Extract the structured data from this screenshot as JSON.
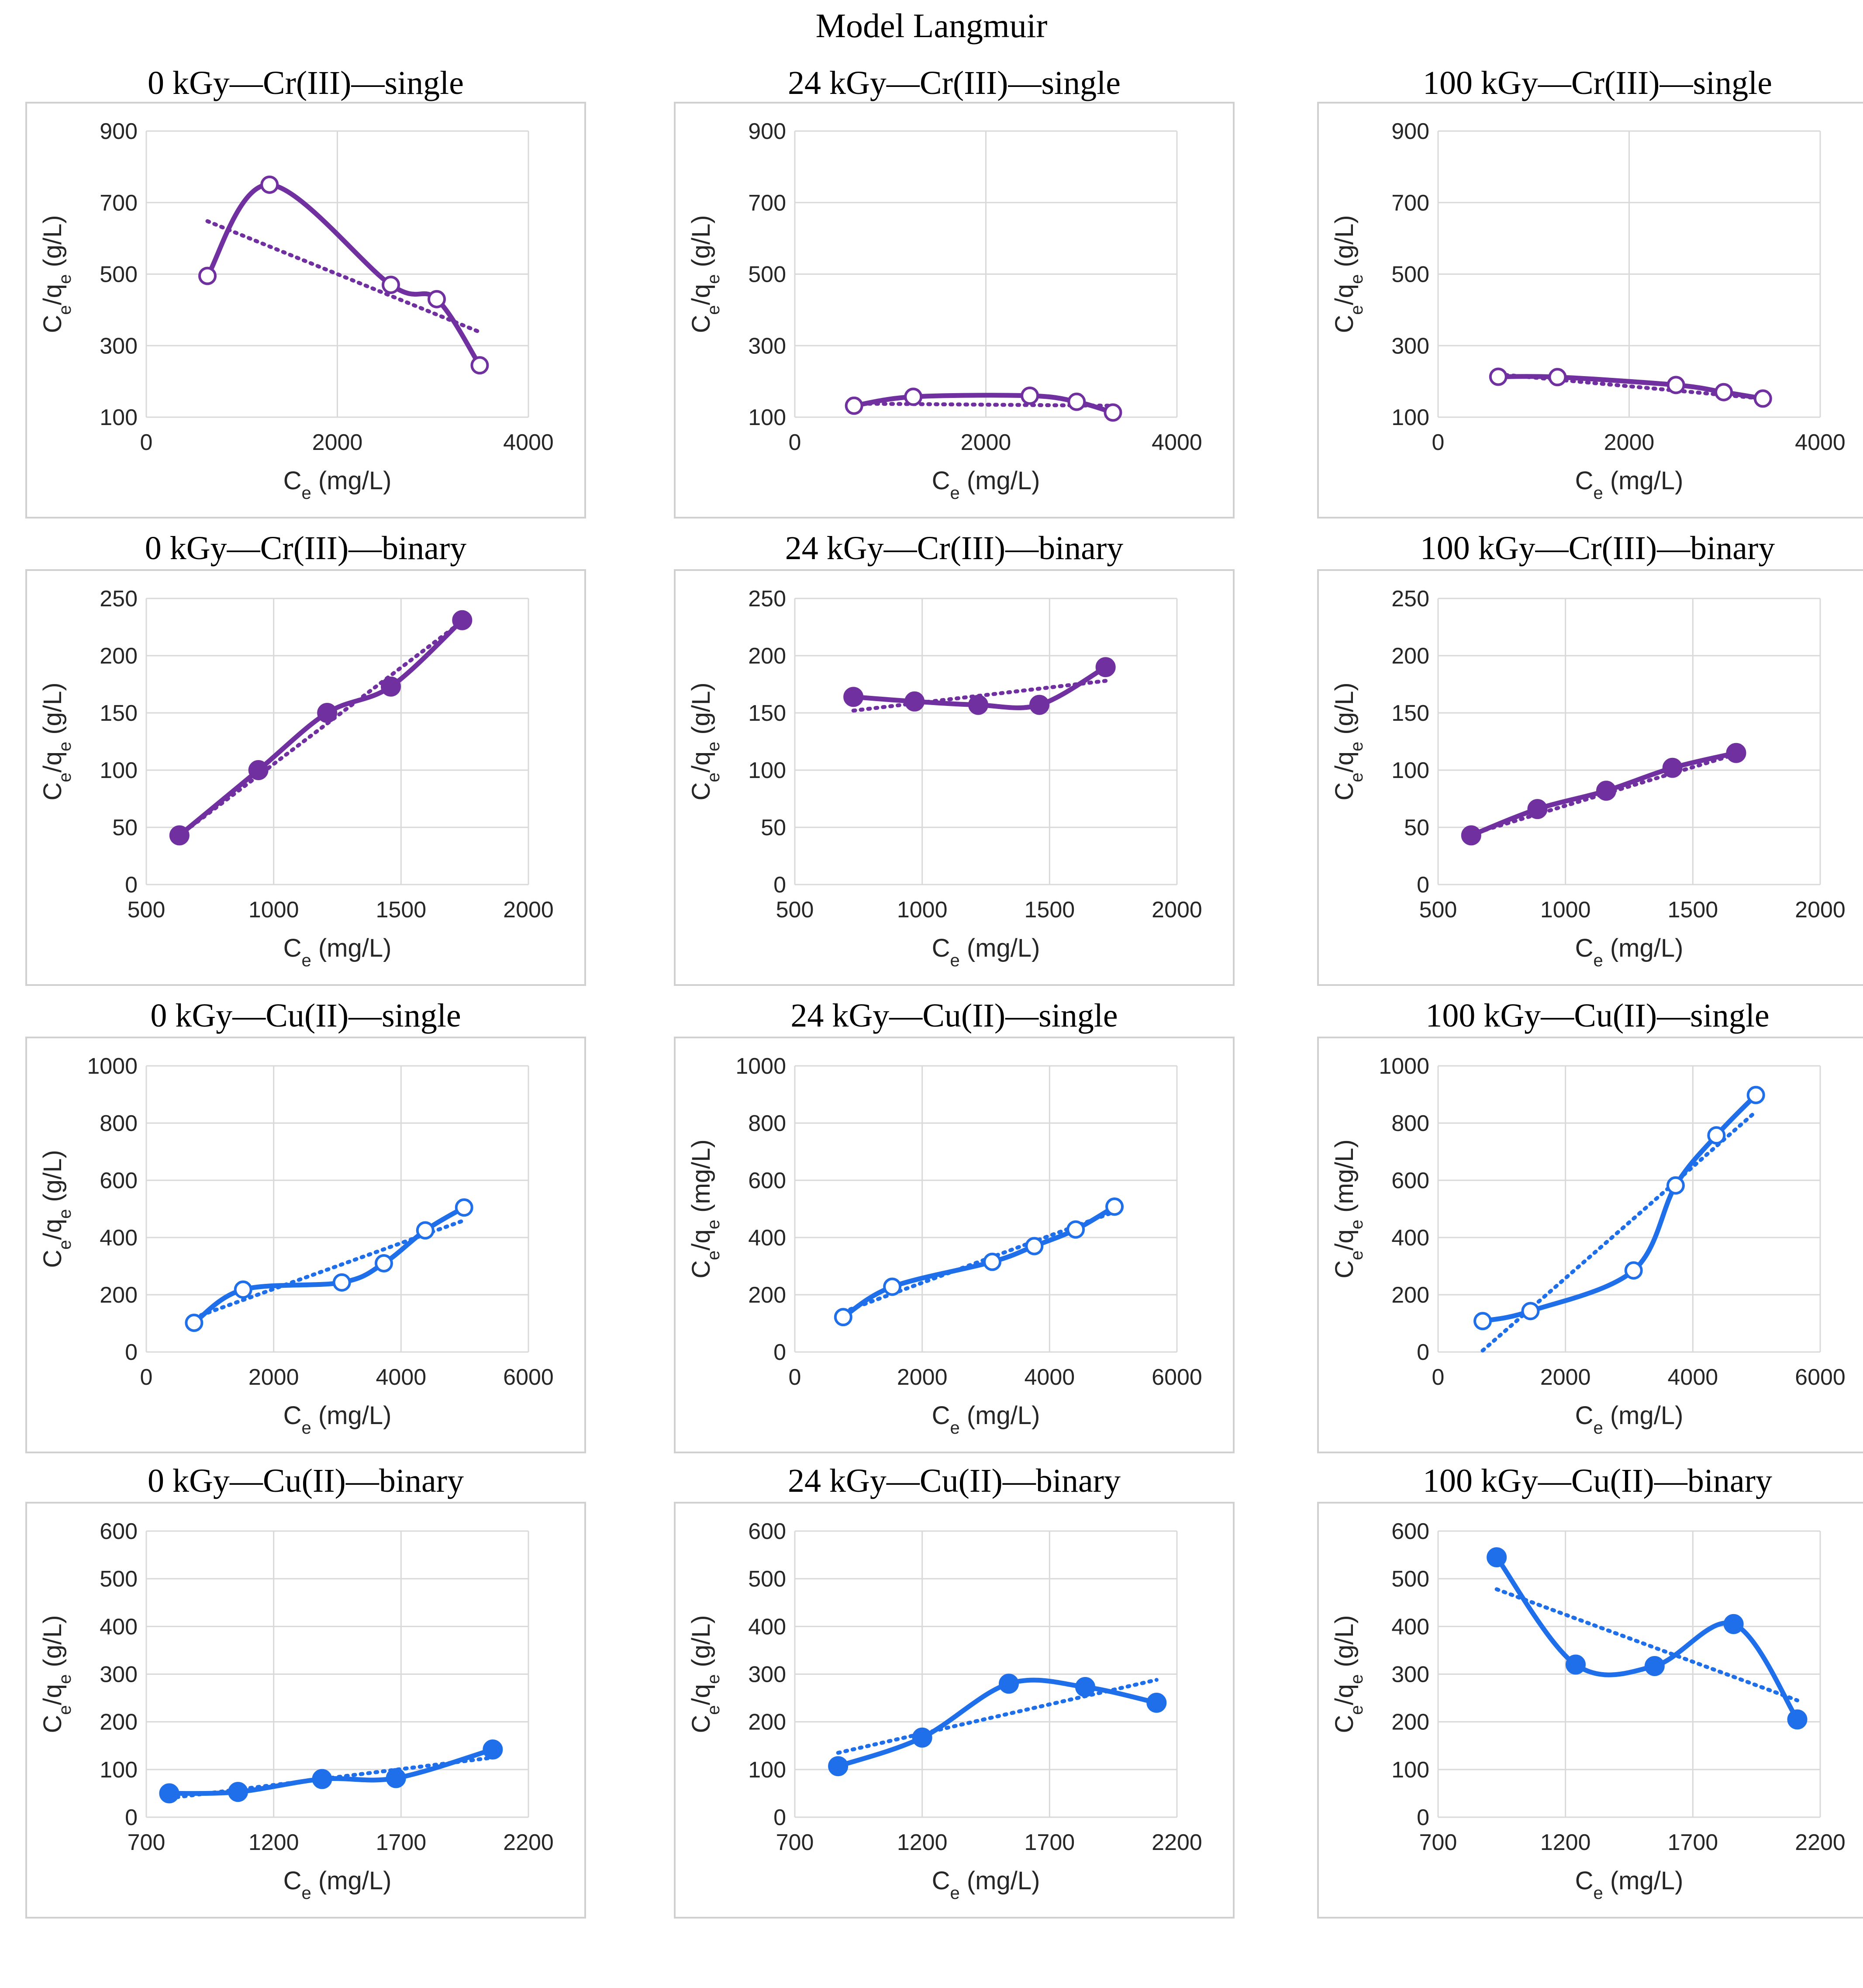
{
  "page_title": "Model Langmuir",
  "colors": {
    "purple": "#7030A0",
    "blue": "#1F6FEA",
    "grid": "#D9D9D9",
    "frame": "#D0D0D0"
  },
  "chart_data": [
    {
      "type": "scatter",
      "title": "0 kGy—Cr(III)—single",
      "xlabel": "Ce (mg/L)",
      "ylabel": "Ce/qe (g/L)",
      "xlim": [
        0,
        4000
      ],
      "ylim": [
        100,
        900
      ],
      "xticks": [
        0,
        2000,
        4000
      ],
      "yticks": [
        100,
        300,
        500,
        700,
        900
      ],
      "xtick_labels": [
        "0",
        "2000",
        "4000"
      ],
      "ytick_labels": [
        "100",
        "300",
        "500",
        "700",
        "900"
      ],
      "color": "purple",
      "marker": "open",
      "grid": true,
      "x": [
        640,
        1290,
        2560,
        3040,
        3490
      ],
      "y": [
        495,
        750,
        470,
        430,
        245
      ],
      "trend": [
        [
          640,
          648
        ],
        [
          3490,
          338
        ]
      ]
    },
    {
      "type": "scatter",
      "title": "24 kGy—Cr(III)—single",
      "xlabel": "Ce (mg/L)",
      "ylabel": "Ce/qe (g/L)",
      "xlim": [
        0,
        4000
      ],
      "ylim": [
        100,
        900
      ],
      "xticks": [
        0,
        2000,
        4000
      ],
      "yticks": [
        100,
        300,
        500,
        700,
        900
      ],
      "xtick_labels": [
        "0",
        "2000",
        "4000"
      ],
      "ytick_labels": [
        "100",
        "300",
        "500",
        "700",
        "900"
      ],
      "color": "purple",
      "marker": "open",
      "grid": true,
      "x": [
        620,
        1240,
        2460,
        2950,
        3330
      ],
      "y": [
        132,
        157,
        160,
        143,
        113
      ],
      "trend": [
        [
          620,
          138
        ],
        [
          3330,
          132
        ]
      ]
    },
    {
      "type": "scatter",
      "title": "100 kGy—Cr(III)—single",
      "xlabel": "Ce (mg/L)",
      "ylabel": "Ce/qe (g/L)",
      "xlim": [
        0,
        4000
      ],
      "ylim": [
        100,
        900
      ],
      "xticks": [
        0,
        2000,
        4000
      ],
      "yticks": [
        100,
        300,
        500,
        700,
        900
      ],
      "xtick_labels": [
        "0",
        "2000",
        "4000"
      ],
      "ytick_labels": [
        "100",
        "300",
        "500",
        "700",
        "900"
      ],
      "color": "purple",
      "marker": "open",
      "grid": true,
      "x": [
        630,
        1250,
        2490,
        2990,
        3400
      ],
      "y": [
        213,
        212,
        190,
        170,
        152
      ],
      "trend": [
        [
          630,
          220
        ],
        [
          3400,
          152
        ]
      ]
    },
    {
      "type": "scatter",
      "title": "0 kGy—Cr(III)—binary",
      "xlabel": "Ce (mg/L)",
      "ylabel": "Ce/qe (g/L)",
      "xlim": [
        500,
        2000
      ],
      "ylim": [
        0,
        250
      ],
      "xticks": [
        500,
        1000,
        1500,
        2000
      ],
      "yticks": [
        0,
        50,
        100,
        150,
        200,
        250
      ],
      "xtick_labels": [
        "500",
        "1000",
        "1500",
        "2000"
      ],
      "ytick_labels": [
        "0",
        "50",
        "100",
        "150",
        "200",
        "250"
      ],
      "color": "purple",
      "marker": "filled",
      "grid": true,
      "x": [
        630,
        940,
        1210,
        1460,
        1740
      ],
      "y": [
        43,
        100,
        150,
        173,
        231
      ],
      "trend": [
        [
          630,
          43
        ],
        [
          1740,
          230
        ]
      ]
    },
    {
      "type": "scatter",
      "title": "24 kGy—Cr(III)—binary",
      "xlabel": "Ce (mg/L)",
      "ylabel": "Ce/qe (g/L)",
      "xlim": [
        500,
        2000
      ],
      "ylim": [
        0,
        250
      ],
      "xticks": [
        500,
        1000,
        1500,
        2000
      ],
      "yticks": [
        0,
        50,
        100,
        150,
        200,
        250
      ],
      "xtick_labels": [
        "500",
        "1000",
        "1500",
        "2000"
      ],
      "ytick_labels": [
        "0",
        "50",
        "100",
        "150",
        "200",
        "250"
      ],
      "color": "purple",
      "marker": "filled",
      "grid": true,
      "x": [
        730,
        970,
        1220,
        1460,
        1720
      ],
      "y": [
        164,
        160,
        157,
        157,
        190
      ],
      "trend": [
        [
          730,
          152
        ],
        [
          1720,
          178
        ]
      ]
    },
    {
      "type": "scatter",
      "title": "100 kGy—Cr(III)—binary",
      "xlabel": "Ce (mg/L)",
      "ylabel": "Ce/qe (g/L)",
      "xlim": [
        500,
        2000
      ],
      "ylim": [
        0,
        250
      ],
      "xticks": [
        500,
        1000,
        1500,
        2000
      ],
      "yticks": [
        0,
        50,
        100,
        150,
        200,
        250
      ],
      "xtick_labels": [
        "500",
        "1000",
        "1500",
        "2000"
      ],
      "ytick_labels": [
        "0",
        "50",
        "100",
        "150",
        "200",
        "250"
      ],
      "color": "purple",
      "marker": "filled",
      "grid": true,
      "x": [
        630,
        890,
        1160,
        1420,
        1670
      ],
      "y": [
        43,
        66,
        82,
        102,
        115
      ],
      "trend": [
        [
          630,
          44
        ],
        [
          1670,
          114
        ]
      ]
    },
    {
      "type": "scatter",
      "title": "0 kGy—Cu(II)—single",
      "xlabel": "Ce (mg/L)",
      "ylabel": "Ce/qe (g/L)",
      "xlim": [
        0,
        6000
      ],
      "ylim": [
        0,
        1000
      ],
      "xticks": [
        0,
        2000,
        4000,
        6000
      ],
      "yticks": [
        0,
        200,
        400,
        600,
        800,
        1000
      ],
      "xtick_labels": [
        "0",
        "2000",
        "4000",
        "6000"
      ],
      "ytick_labels": [
        "0",
        "200",
        "400",
        "600",
        "800",
        "1000"
      ],
      "color": "blue",
      "marker": "open",
      "grid": true,
      "x": [
        750,
        1520,
        3070,
        3730,
        4380,
        4990
      ],
      "y": [
        102,
        218,
        243,
        310,
        425,
        505
      ],
      "trend": [
        [
          750,
          120
        ],
        [
          4990,
          460
        ]
      ]
    },
    {
      "type": "scatter",
      "title": "24 kGy—Cu(II)—single",
      "xlabel": "Ce (mg/L)",
      "ylabel": "Ce/qe (mg/L)",
      "xlim": [
        0,
        6000
      ],
      "ylim": [
        0,
        1000
      ],
      "xticks": [
        0,
        2000,
        4000,
        6000
      ],
      "yticks": [
        0,
        200,
        400,
        600,
        800,
        1000
      ],
      "xtick_labels": [
        "0",
        "2000",
        "4000",
        "6000"
      ],
      "ytick_labels": [
        "0",
        "200",
        "400",
        "600",
        "800",
        "1000"
      ],
      "color": "blue",
      "marker": "open",
      "grid": true,
      "x": [
        760,
        1530,
        3100,
        3760,
        4410,
        5020
      ],
      "y": [
        122,
        228,
        315,
        370,
        428,
        508
      ],
      "trend": [
        [
          760,
          140
        ],
        [
          5020,
          490
        ]
      ]
    },
    {
      "type": "scatter",
      "title": "100 kGy—Cu(II)—single",
      "xlabel": "Ce (mg/L)",
      "ylabel": "Ce/qe (mg/L)",
      "xlim": [
        0,
        6000
      ],
      "ylim": [
        0,
        1000
      ],
      "xticks": [
        0,
        2000,
        4000,
        6000
      ],
      "yticks": [
        0,
        200,
        400,
        600,
        800,
        1000
      ],
      "xtick_labels": [
        "0",
        "2000",
        "4000",
        "6000"
      ],
      "ytick_labels": [
        "0",
        "200",
        "400",
        "600",
        "800",
        "1000"
      ],
      "color": "blue",
      "marker": "open",
      "grid": true,
      "x": [
        700,
        1450,
        3070,
        3730,
        4370,
        4990
      ],
      "y": [
        108,
        143,
        285,
        582,
        757,
        898
      ],
      "trend": [
        [
          700,
          5
        ],
        [
          4990,
          840
        ]
      ]
    },
    {
      "type": "scatter",
      "title": "0 kGy—Cu(II)—binary",
      "xlabel": "Ce (mg/L)",
      "ylabel": "Ce/qe (g/L)",
      "xlim": [
        700,
        2200
      ],
      "ylim": [
        0,
        600
      ],
      "xticks": [
        700,
        1200,
        1700,
        2200
      ],
      "yticks": [
        0,
        100,
        200,
        300,
        400,
        500,
        600
      ],
      "xtick_labels": [
        "700",
        "1200",
        "1700",
        "2200"
      ],
      "ytick_labels": [
        "0",
        "100",
        "200",
        "300",
        "400",
        "500",
        "600"
      ],
      "color": "blue",
      "marker": "filled",
      "grid": true,
      "x": [
        790,
        1060,
        1390,
        1680,
        2060
      ],
      "y": [
        50,
        53,
        80,
        82,
        142
      ],
      "trend": [
        [
          790,
          40
        ],
        [
          2060,
          125
        ]
      ]
    },
    {
      "type": "scatter",
      "title": "24 kGy—Cu(II)—binary",
      "xlabel": "Ce (mg/L)",
      "ylabel": "Ce/qe (g/L)",
      "xlim": [
        700,
        2200
      ],
      "ylim": [
        0,
        600
      ],
      "xticks": [
        700,
        1200,
        1700,
        2200
      ],
      "yticks": [
        0,
        100,
        200,
        300,
        400,
        500,
        600
      ],
      "xtick_labels": [
        "700",
        "1200",
        "1700",
        "2200"
      ],
      "ytick_labels": [
        "0",
        "100",
        "200",
        "300",
        "400",
        "500",
        "600"
      ],
      "color": "blue",
      "marker": "filled",
      "grid": true,
      "x": [
        870,
        1200,
        1540,
        1840,
        2120
      ],
      "y": [
        107,
        167,
        280,
        273,
        240
      ],
      "trend": [
        [
          870,
          135
        ],
        [
          2120,
          288
        ]
      ]
    },
    {
      "type": "scatter",
      "title": "100 kGy—Cu(II)—binary",
      "xlabel": "Ce (mg/L)",
      "ylabel": "Ce/qe (g/L)",
      "xlim": [
        700,
        2200
      ],
      "ylim": [
        0,
        600
      ],
      "xticks": [
        700,
        1200,
        1700,
        2200
      ],
      "yticks": [
        0,
        100,
        200,
        300,
        400,
        500,
        600
      ],
      "xtick_labels": [
        "700",
        "1200",
        "1700",
        "2200"
      ],
      "ytick_labels": [
        "0",
        "100",
        "200",
        "300",
        "400",
        "500",
        "600"
      ],
      "color": "blue",
      "marker": "filled",
      "grid": true,
      "x": [
        930,
        1240,
        1550,
        1860,
        2110
      ],
      "y": [
        545,
        320,
        317,
        405,
        205
      ],
      "trend": [
        [
          930,
          478
        ],
        [
          2110,
          245
        ]
      ]
    }
  ]
}
